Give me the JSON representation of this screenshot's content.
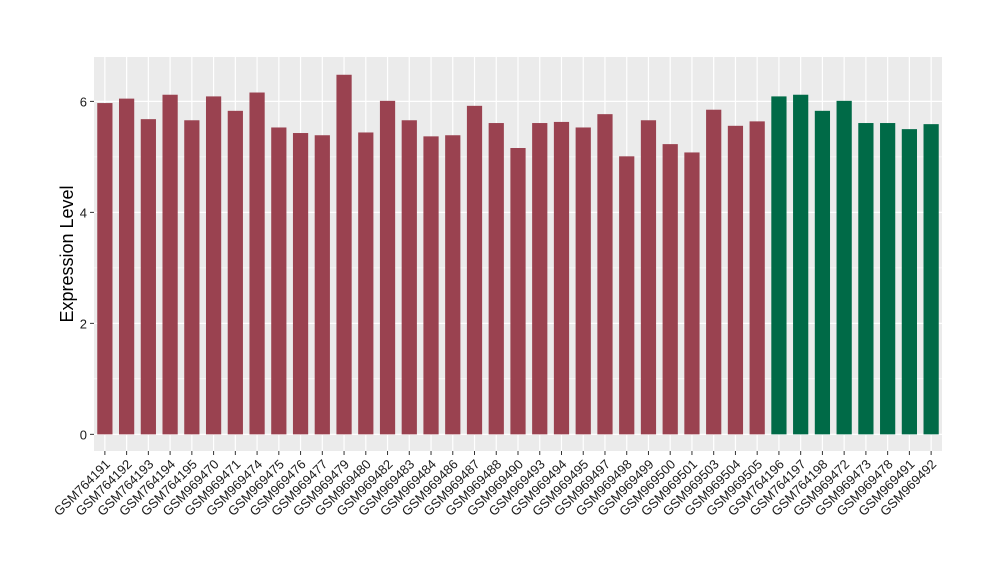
{
  "chart_data": {
    "type": "bar",
    "title": "",
    "xlabel": "",
    "ylabel": "Expression Level",
    "ylim": [
      -0.3,
      6.8
    ],
    "yticks": [
      0,
      2,
      4,
      6
    ],
    "grid": true,
    "legend": "none",
    "categories": [
      "GSM764191",
      "GSM764192",
      "GSM764193",
      "GSM764194",
      "GSM764195",
      "GSM969470",
      "GSM969471",
      "GSM969474",
      "GSM969475",
      "GSM969476",
      "GSM969477",
      "GSM969479",
      "GSM969480",
      "GSM969482",
      "GSM969483",
      "GSM969484",
      "GSM969486",
      "GSM969487",
      "GSM969488",
      "GSM969490",
      "GSM969493",
      "GSM969494",
      "GSM969495",
      "GSM969497",
      "GSM969498",
      "GSM969499",
      "GSM969500",
      "GSM969501",
      "GSM969503",
      "GSM969504",
      "GSM969505",
      "GSM764196",
      "GSM764197",
      "GSM764198",
      "GSM969472",
      "GSM969473",
      "GSM969478",
      "GSM969491",
      "GSM969492"
    ],
    "values": [
      5.97,
      6.05,
      5.68,
      6.12,
      5.66,
      6.09,
      5.83,
      6.16,
      5.53,
      5.43,
      5.39,
      6.48,
      5.44,
      6.01,
      5.66,
      5.37,
      5.39,
      5.92,
      5.61,
      5.16,
      5.61,
      5.63,
      5.53,
      5.77,
      5.01,
      5.66,
      5.23,
      5.08,
      5.85,
      5.56,
      5.64,
      6.09,
      6.12,
      5.83,
      6.01,
      5.61,
      5.61,
      5.5,
      5.59
    ],
    "groups": [
      "a",
      "a",
      "a",
      "a",
      "a",
      "a",
      "a",
      "a",
      "a",
      "a",
      "a",
      "a",
      "a",
      "a",
      "a",
      "a",
      "a",
      "a",
      "a",
      "a",
      "a",
      "a",
      "a",
      "a",
      "a",
      "a",
      "a",
      "a",
      "a",
      "a",
      "a",
      "b",
      "b",
      "b",
      "b",
      "b",
      "b",
      "b",
      "b"
    ],
    "colors": {
      "a": "#9a4250",
      "b": "#006a47",
      "panel": "#ebebeb",
      "grid": "#ffffff"
    }
  }
}
